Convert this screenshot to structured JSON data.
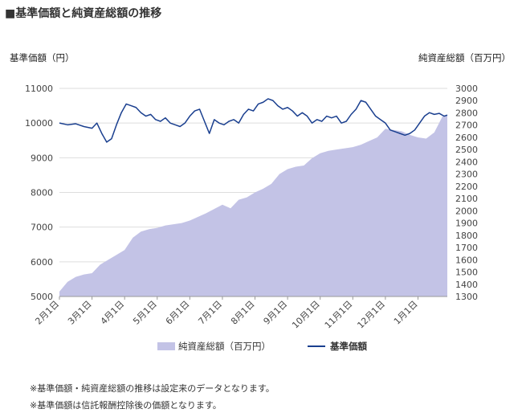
{
  "title": "■基準価額と純資産総額の推移",
  "left_axis_title": "基準価額（円）",
  "right_axis_title": "純資産総額（百万円）",
  "legend": {
    "area_label": "純資産総額（百万円）",
    "line_label": "基準価額"
  },
  "notes": [
    "※基準価額・純資産総額の推移は設定来のデータとなります。",
    "※基準価額は信託報酬控除後の価額となります。"
  ],
  "colors": {
    "area": "#c3c3e6",
    "line": "#1a3f8f",
    "grid": "#dddddd"
  },
  "chart_data": {
    "type": "line",
    "categories": [
      "2月1日",
      "3月1日",
      "4月1日",
      "5月1日",
      "6月1日",
      "7月1日",
      "8月1日",
      "9月1日",
      "10月1日",
      "11月1日",
      "12月1日",
      "1月1日"
    ],
    "y_left_ticks": [
      "11000",
      "10000",
      "9000",
      "8000",
      "7000",
      "6000",
      "5000"
    ],
    "y_right_ticks": [
      "3000",
      "2900",
      "2800",
      "2700",
      "2600",
      "2500",
      "2400",
      "2300",
      "2200",
      "2100",
      "2000",
      "1900",
      "1800",
      "1700",
      "1600",
      "1500",
      "1400",
      "1300"
    ],
    "ylim_left": [
      5000,
      11000
    ],
    "ylim_right": [
      1300,
      3000
    ],
    "x_range": [
      0,
      11.9
    ],
    "series": [
      {
        "name": "純資産総額（百万円）",
        "type": "area",
        "axis": "right",
        "x": [
          0,
          0.25,
          0.5,
          0.75,
          1,
          1.25,
          1.5,
          1.75,
          2,
          2.25,
          2.5,
          2.75,
          3,
          3.25,
          3.5,
          3.75,
          4,
          4.5,
          5,
          5.25,
          5.5,
          5.75,
          6,
          6.25,
          6.5,
          6.75,
          7,
          7.25,
          7.5,
          7.75,
          8,
          8.25,
          8.5,
          8.75,
          9,
          9.25,
          9.5,
          9.75,
          10,
          10.25,
          10.5,
          10.75,
          11,
          11.25,
          11.5,
          11.75,
          11.9
        ],
        "values": [
          1340,
          1420,
          1460,
          1480,
          1490,
          1560,
          1600,
          1640,
          1680,
          1780,
          1830,
          1850,
          1860,
          1880,
          1890,
          1900,
          1920,
          1980,
          2050,
          2020,
          2090,
          2110,
          2150,
          2180,
          2220,
          2300,
          2340,
          2360,
          2370,
          2430,
          2470,
          2490,
          2500,
          2510,
          2520,
          2540,
          2570,
          2600,
          2670,
          2660,
          2650,
          2620,
          2600,
          2590,
          2640,
          2770,
          2780
        ]
      },
      {
        "name": "基準価額",
        "type": "line",
        "axis": "left",
        "x": [
          0,
          0.25,
          0.5,
          0.75,
          1,
          1.15,
          1.3,
          1.45,
          1.6,
          1.75,
          1.9,
          2.05,
          2.2,
          2.35,
          2.5,
          2.65,
          2.8,
          2.95,
          3.1,
          3.25,
          3.4,
          3.55,
          3.7,
          3.85,
          4,
          4.15,
          4.3,
          4.45,
          4.6,
          4.75,
          4.9,
          5.05,
          5.2,
          5.35,
          5.5,
          5.65,
          5.8,
          5.95,
          6.1,
          6.25,
          6.4,
          6.55,
          6.7,
          6.85,
          7,
          7.15,
          7.3,
          7.45,
          7.6,
          7.75,
          7.9,
          8.05,
          8.2,
          8.35,
          8.5,
          8.65,
          8.8,
          8.95,
          9.1,
          9.25,
          9.4,
          9.55,
          9.7,
          9.85,
          10,
          10.15,
          10.3,
          10.45,
          10.6,
          10.75,
          10.9,
          11.05,
          11.2,
          11.35,
          11.5,
          11.65,
          11.8,
          11.9
        ],
        "values": [
          10000,
          9950,
          9980,
          9900,
          9850,
          10000,
          9700,
          9450,
          9550,
          9950,
          10300,
          10550,
          10500,
          10450,
          10300,
          10200,
          10250,
          10100,
          10050,
          10150,
          10000,
          9950,
          9900,
          10000,
          10200,
          10350,
          10400,
          10050,
          9700,
          10100,
          10000,
          9950,
          10050,
          10100,
          10000,
          10250,
          10400,
          10350,
          10550,
          10600,
          10700,
          10650,
          10500,
          10400,
          10450,
          10350,
          10200,
          10300,
          10200,
          10000,
          10100,
          10050,
          10200,
          10150,
          10200,
          10000,
          10050,
          10250,
          10400,
          10650,
          10600,
          10400,
          10200,
          10100,
          10000,
          9800,
          9750,
          9700,
          9650,
          9700,
          9800,
          10000,
          10200,
          10300,
          10250,
          10280,
          10200,
          10230
        ]
      }
    ]
  }
}
